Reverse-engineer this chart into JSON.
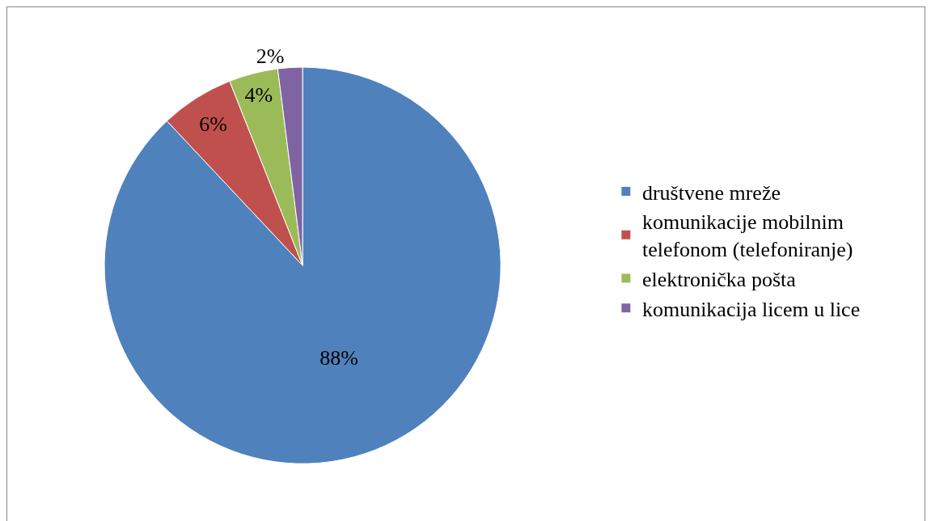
{
  "chart_data": {
    "type": "pie",
    "categories": [
      "društvene mreže",
      "komunikacije mobilnim telefonom (telefoniranje)",
      "elektronička pošta",
      "komunikacija licem u lice"
    ],
    "values": [
      88,
      6,
      4,
      2
    ],
    "value_labels": [
      "88%",
      "6%",
      "4%",
      "2%"
    ],
    "colors": [
      "#4f81bd",
      "#c0504d",
      "#9bbb59",
      "#8064a2"
    ],
    "legend": "right"
  }
}
